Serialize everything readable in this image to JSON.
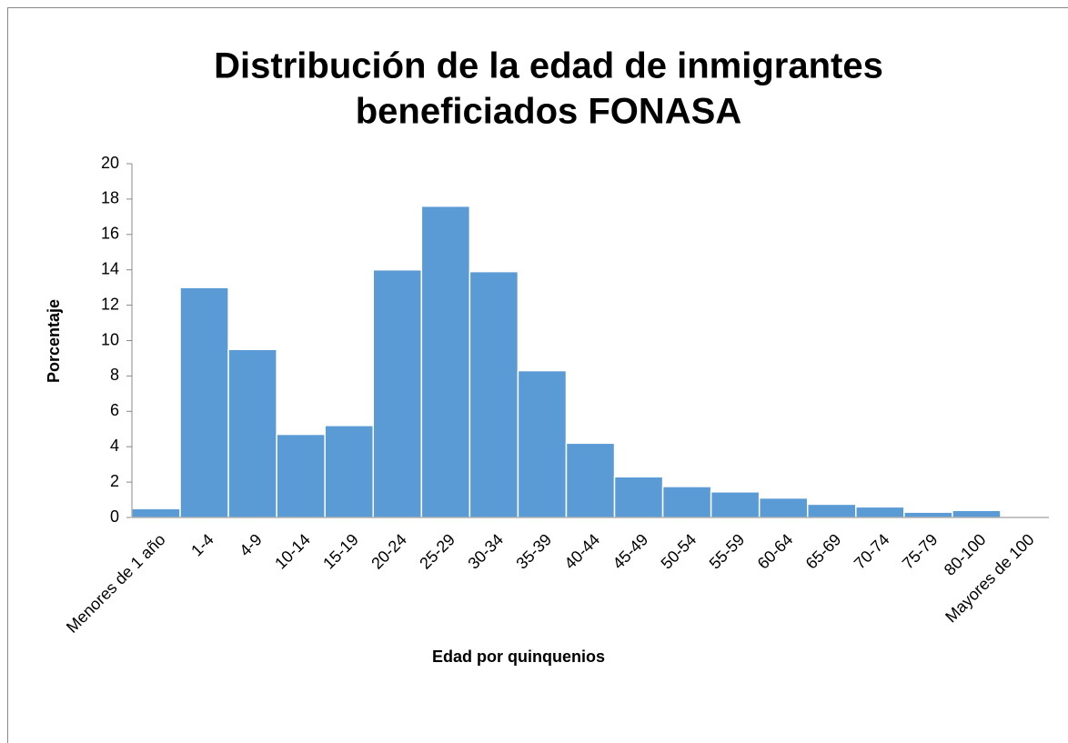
{
  "chart_data": {
    "type": "bar",
    "title": [
      "Distribución de la edad de inmigrantes",
      "beneficiados FONASA"
    ],
    "xlabel": "Edad por quinquenios",
    "ylabel": "Porcentaje",
    "categories": [
      "Menores de 1 año",
      "1-4",
      "4-9",
      "10-14",
      "15-19",
      "20-24",
      "25-29",
      "30-34",
      "35-39",
      "40-44",
      "45-49",
      "50-54",
      "55-59",
      "60-64",
      "65-69",
      "70-74",
      "75-79",
      "80-100",
      "Mayores de 100"
    ],
    "values": [
      0.5,
      13.0,
      9.5,
      4.7,
      5.2,
      14.0,
      17.6,
      13.9,
      8.3,
      4.2,
      2.3,
      1.75,
      1.45,
      1.1,
      0.75,
      0.6,
      0.3,
      0.4,
      0
    ],
    "color": "#5b9bd5",
    "ylim": [
      0,
      20
    ],
    "yticks": [
      0,
      2,
      4,
      6,
      8,
      10,
      12,
      14,
      16,
      18,
      20
    ],
    "grid": false
  }
}
